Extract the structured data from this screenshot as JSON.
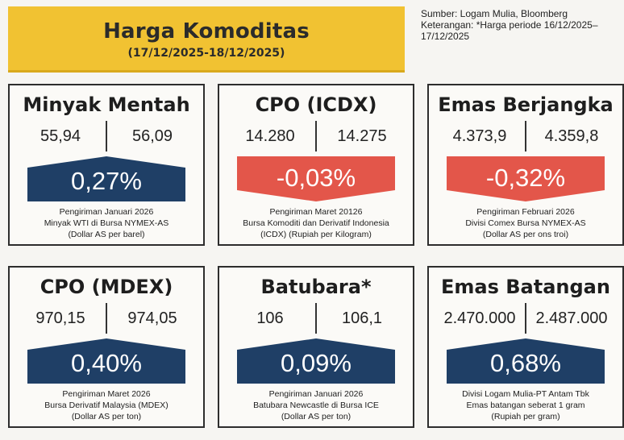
{
  "header": {
    "title": "Harga Komoditas",
    "period": "(17/12/2025-18/12/2025)"
  },
  "source": {
    "line1": "Sumber: Logam Mulia, Bloomberg",
    "line2": "Keterangan: *Harga periode 16/12/2025–",
    "line3": "17/12/2025"
  },
  "colors": {
    "up": "#1f3f66",
    "down": "#e3564a",
    "header": "#f1c232"
  },
  "cards": [
    {
      "title": "Minyak Mentah",
      "price_prev": "55,94",
      "price_curr": "56,09",
      "change": "0,27%",
      "direction": "up",
      "desc1": "Pengiriman Januari 2026",
      "desc2": "Minyak WTI di Bursa NYMEX-AS",
      "desc3": "(Dollar AS per barel)"
    },
    {
      "title": "CPO (ICDX)",
      "price_prev": "14.280",
      "price_curr": "14.275",
      "change": "-0,03%",
      "direction": "down",
      "desc1": "Pengiriman Maret 20126",
      "desc2": "Bursa Komoditi dan Derivatif Indonesia",
      "desc3": "(ICDX) (Rupiah per Kilogram)"
    },
    {
      "title": "Emas Berjangka",
      "price_prev": "4.373,9",
      "price_curr": "4.359,8",
      "change": "-0,32%",
      "direction": "down",
      "desc1": "Pengiriman Februari 2026",
      "desc2": "Divisi Comex Bursa NYMEX-AS",
      "desc3": "(Dollar AS per ons troi)"
    },
    {
      "title": "CPO (MDEX)",
      "price_prev": "970,15",
      "price_curr": "974,05",
      "change": "0,40%",
      "direction": "up",
      "desc1": "Pengiriman Maret 2026",
      "desc2": "Bursa Derivatif Malaysia (MDEX)",
      "desc3": "(Dollar AS per ton)"
    },
    {
      "title": "Batubara*",
      "price_prev": "106",
      "price_curr": "106,1",
      "change": "0,09%",
      "direction": "up",
      "desc1": "Pengiriman Januari 2026",
      "desc2": "Batubara Newcastle di Bursa ICE",
      "desc3": "(Dollar AS per ton)"
    },
    {
      "title": "Emas Batangan",
      "price_prev": "2.470.000",
      "price_curr": "2.487.000",
      "change": "0,68%",
      "direction": "up",
      "desc1": "Divisi Logam Mulia-PT Antam Tbk",
      "desc2": "Emas batangan seberat 1 gram",
      "desc3": "(Rupiah per gram)"
    }
  ]
}
